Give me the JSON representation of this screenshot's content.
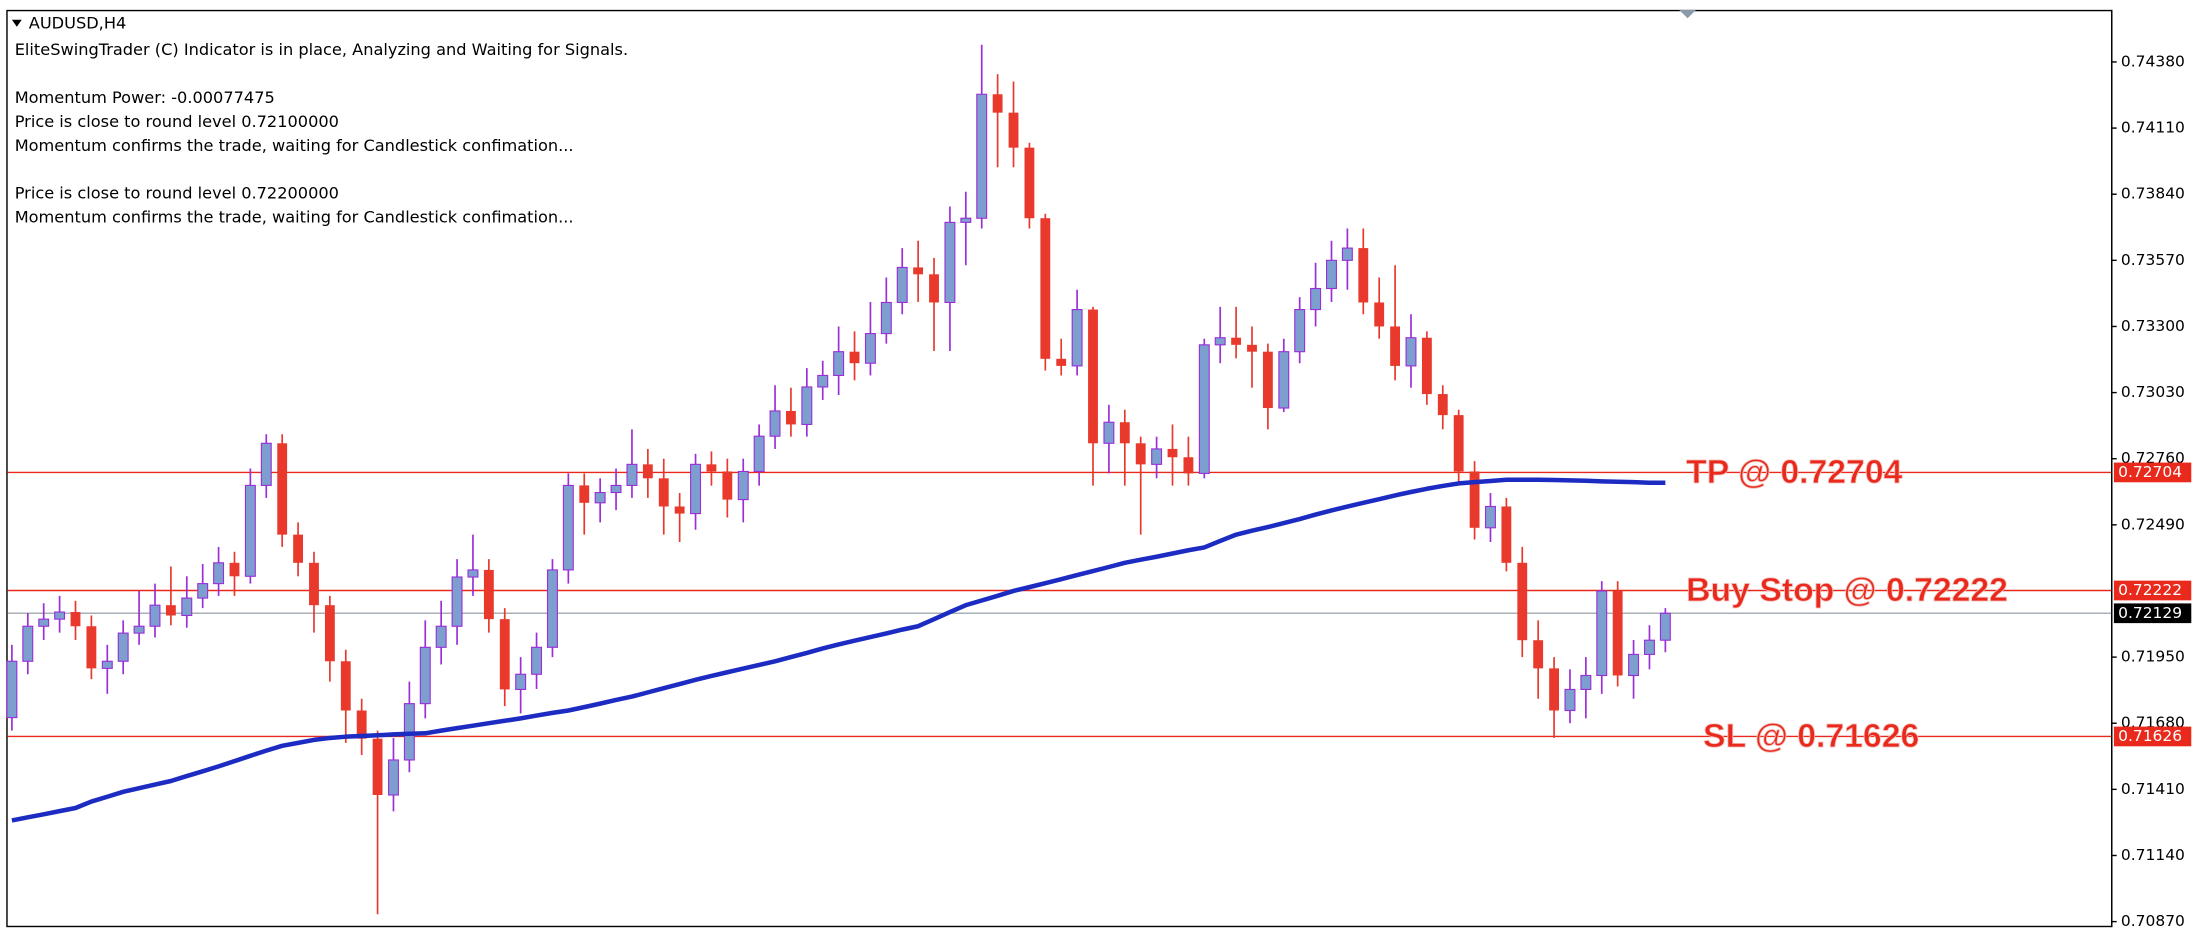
{
  "chart_data": {
    "type": "candlestick",
    "symbol": "AUDUSD,H4",
    "notes": [
      "EliteSwingTrader (C) Indicator is in place, Analyzing and Waiting for Signals.",
      "Momentum Power: -0.00077475",
      "Price is close to round level 0.72100000",
      "Momentum confirms the trade, waiting for Candlestick confimation...",
      "Price is close to round level 0.72200000",
      "Momentum confirms the trade, waiting for Candlestick confimation..."
    ],
    "up_color": "#7d9fcf",
    "up_wick_color": "#9a2fd8",
    "down_color": "#e8392c",
    "open": [
      0.71703,
      0.71933,
      0.72076,
      0.72105,
      0.72134,
      0.72076,
      0.71904,
      0.71933,
      0.72048,
      0.72076,
      0.72162,
      0.7212,
      0.72191,
      0.7225,
      0.72335,
      0.7228,
      0.72651,
      0.72823,
      0.7245,
      0.72335,
      0.72162,
      0.71933,
      0.71732,
      0.71617,
      0.71387,
      0.7153,
      0.7176,
      0.7199,
      0.72076,
      0.72277,
      0.72306,
      0.72105,
      0.71818,
      0.7188,
      0.7199,
      0.72306,
      0.72651,
      0.7258,
      0.72622,
      0.72651,
      0.72737,
      0.7268,
      0.72565,
      0.72536,
      0.72737,
      0.72708,
      0.72593,
      0.72708,
      0.72852,
      0.72955,
      0.729,
      0.73053,
      0.731,
      0.73197,
      0.7315,
      0.73271,
      0.73398,
      0.73541,
      0.73513,
      0.73398,
      0.73725,
      0.73742,
      0.74248,
      0.74173,
      0.7403,
      0.73742,
      0.73168,
      0.73139,
      0.73369,
      0.72823,
      0.72909,
      0.72823,
      0.72737,
      0.728,
      0.72766,
      0.727,
      0.73225,
      0.73254,
      0.73225,
      0.73197,
      0.72967,
      0.73197,
      0.73369,
      0.73455,
      0.7357,
      0.7362,
      0.73398,
      0.733,
      0.73139,
      0.73254,
      0.73024,
      0.72938,
      0.72708,
      0.72478,
      0.72565,
      0.72335,
      0.72019,
      0.71904,
      0.71732,
      0.71818,
      0.71875,
      0.7222,
      0.71875,
      0.71961,
      0.72019
    ],
    "high": [
      0.72,
      0.7213,
      0.7217,
      0.722,
      0.7218,
      0.7212,
      0.72,
      0.721,
      0.7222,
      0.7225,
      0.7232,
      0.7228,
      0.7233,
      0.724,
      0.7238,
      0.7272,
      0.7286,
      0.7286,
      0.725,
      0.7238,
      0.722,
      0.7198,
      0.7178,
      0.7165,
      0.7162,
      0.7185,
      0.721,
      0.7218,
      0.7235,
      0.7245,
      0.7235,
      0.7215,
      0.7195,
      0.7205,
      0.7235,
      0.727,
      0.727,
      0.7268,
      0.7272,
      0.7288,
      0.728,
      0.7276,
      0.7262,
      0.7278,
      0.7279,
      0.7276,
      0.7276,
      0.729,
      0.7306,
      0.7305,
      0.7313,
      0.7316,
      0.733,
      0.7328,
      0.734,
      0.735,
      0.7362,
      0.7365,
      0.7358,
      0.7379,
      0.7385,
      0.7445,
      0.7433,
      0.743,
      0.7405,
      0.7376,
      0.7325,
      0.7345,
      0.7338,
      0.7298,
      0.7296,
      0.7285,
      0.7285,
      0.729,
      0.7285,
      0.7325,
      0.7338,
      0.7338,
      0.733,
      0.7323,
      0.7325,
      0.7342,
      0.7356,
      0.7365,
      0.737,
      0.737,
      0.735,
      0.7355,
      0.7335,
      0.7328,
      0.7306,
      0.7296,
      0.7275,
      0.7262,
      0.726,
      0.724,
      0.721,
      0.7195,
      0.719,
      0.7195,
      0.7226,
      0.7226,
      0.7202,
      0.7208,
      0.7215
    ],
    "low": [
      0.7165,
      0.7188,
      0.7202,
      0.7205,
      0.7202,
      0.7186,
      0.718,
      0.7188,
      0.72,
      0.7203,
      0.7208,
      0.7207,
      0.7215,
      0.722,
      0.722,
      0.7225,
      0.726,
      0.724,
      0.7228,
      0.7205,
      0.7185,
      0.716,
      0.7155,
      0.709,
      0.7132,
      0.7148,
      0.717,
      0.7192,
      0.72,
      0.722,
      0.7205,
      0.7175,
      0.7172,
      0.7182,
      0.7195,
      0.7225,
      0.7245,
      0.725,
      0.7255,
      0.726,
      0.726,
      0.7245,
      0.7242,
      0.7247,
      0.7265,
      0.7252,
      0.725,
      0.7265,
      0.728,
      0.7285,
      0.7285,
      0.73,
      0.7302,
      0.7308,
      0.731,
      0.7323,
      0.7335,
      0.734,
      0.732,
      0.732,
      0.7355,
      0.737,
      0.7395,
      0.7395,
      0.737,
      0.7312,
      0.731,
      0.731,
      0.7265,
      0.727,
      0.7265,
      0.7245,
      0.7268,
      0.7265,
      0.7265,
      0.7268,
      0.7315,
      0.7317,
      0.7305,
      0.7288,
      0.7295,
      0.7315,
      0.733,
      0.734,
      0.7345,
      0.7335,
      0.7325,
      0.7308,
      0.7305,
      0.7298,
      0.7288,
      0.7265,
      0.7243,
      0.7242,
      0.723,
      0.7195,
      0.7178,
      0.7162,
      0.7168,
      0.717,
      0.718,
      0.7183,
      0.7178,
      0.719,
      0.7197
    ],
    "close": [
      0.71933,
      0.72076,
      0.72105,
      0.72134,
      0.72076,
      0.71904,
      0.71933,
      0.72048,
      0.72076,
      0.72162,
      0.7212,
      0.72191,
      0.7225,
      0.72335,
      0.7228,
      0.72651,
      0.72823,
      0.7245,
      0.72335,
      0.72162,
      0.71933,
      0.71732,
      0.71617,
      0.71387,
      0.7153,
      0.7176,
      0.7199,
      0.72076,
      0.72277,
      0.72306,
      0.72105,
      0.71818,
      0.7188,
      0.7199,
      0.72306,
      0.72651,
      0.7258,
      0.72622,
      0.72651,
      0.72737,
      0.7268,
      0.72565,
      0.72536,
      0.72737,
      0.72708,
      0.72593,
      0.72708,
      0.72852,
      0.72955,
      0.729,
      0.73053,
      0.731,
      0.73197,
      0.7315,
      0.73271,
      0.73398,
      0.73541,
      0.73513,
      0.73398,
      0.73725,
      0.73742,
      0.74248,
      0.74173,
      0.7403,
      0.73742,
      0.73168,
      0.73139,
      0.73369,
      0.72823,
      0.72909,
      0.72823,
      0.72737,
      0.728,
      0.72766,
      0.727,
      0.73225,
      0.73254,
      0.73225,
      0.73197,
      0.72967,
      0.73197,
      0.73369,
      0.73455,
      0.7357,
      0.7362,
      0.73398,
      0.733,
      0.73139,
      0.73254,
      0.73024,
      0.72938,
      0.72708,
      0.72478,
      0.72565,
      0.72335,
      0.72019,
      0.71904,
      0.71732,
      0.71818,
      0.71875,
      0.7222,
      0.71875,
      0.71961,
      0.72019,
      0.72129
    ],
    "moving_average": {
      "color": "#1c2bc2",
      "values": [
        0.71283,
        0.71296,
        0.71308,
        0.71321,
        0.71334,
        0.7136,
        0.7138,
        0.714,
        0.71415,
        0.7143,
        0.71444,
        0.71464,
        0.71484,
        0.71504,
        0.71525,
        0.71547,
        0.71568,
        0.71588,
        0.716,
        0.71612,
        0.7162,
        0.71625,
        0.71628,
        0.71631,
        0.71634,
        0.71637,
        0.71639,
        0.7165,
        0.7166,
        0.7167,
        0.7168,
        0.7169,
        0.717,
        0.71711,
        0.71722,
        0.71732,
        0.71746,
        0.7176,
        0.71775,
        0.71789,
        0.71806,
        0.71823,
        0.7184,
        0.71857,
        0.71873,
        0.71888,
        0.71903,
        0.71918,
        0.71933,
        0.7195,
        0.71967,
        0.71985,
        0.72002,
        0.72017,
        0.72032,
        0.72047,
        0.72062,
        0.72076,
        0.72105,
        0.72134,
        0.72162,
        0.72181,
        0.722,
        0.7222,
        0.72236,
        0.72252,
        0.72268,
        0.72285,
        0.72301,
        0.72318,
        0.72335,
        0.72348,
        0.7236,
        0.72373,
        0.72386,
        0.72398,
        0.72424,
        0.7245,
        0.72466,
        0.72481,
        0.72497,
        0.72514,
        0.72532,
        0.72549,
        0.72565,
        0.7258,
        0.72595,
        0.7261,
        0.72624,
        0.72637,
        0.72649,
        0.72659,
        0.72664,
        0.72669,
        0.72674,
        0.72674,
        0.72674,
        0.72673,
        0.72672,
        0.7267,
        0.72668,
        0.72666,
        0.72664,
        0.72662,
        0.72662
      ]
    },
    "levels": [
      {
        "value": 0.72704,
        "label": "TP @ 0.72704",
        "color": "#e8291c"
      },
      {
        "value": 0.72222,
        "label": "Buy Stop @ 0.72222",
        "color": "#e8291c"
      },
      {
        "value": 0.71626,
        "label": "SL @ 0.71626",
        "color": "#e8291c"
      }
    ],
    "current_price_color": "#a8b0b8",
    "ylim": [
      0.70853,
      0.74587
    ],
    "yticks": [
      {
        "value": 0.7438,
        "label": "0.74380"
      },
      {
        "value": 0.7411,
        "label": "0.74110"
      },
      {
        "value": 0.7384,
        "label": "0.73840"
      },
      {
        "value": 0.7357,
        "label": "0.73570"
      },
      {
        "value": 0.733,
        "label": "0.73300"
      },
      {
        "value": 0.7303,
        "label": "0.73030"
      },
      {
        "value": 0.7276,
        "label": "0.72760"
      },
      {
        "value": 0.7249,
        "label": "0.72490"
      },
      {
        "value": 0.7195,
        "label": "0.71950"
      },
      {
        "value": 0.7168,
        "label": "0.71680"
      },
      {
        "value": 0.7141,
        "label": "0.71410"
      },
      {
        "value": 0.7114,
        "label": "0.71140"
      },
      {
        "value": 0.7087,
        "label": "0.70870"
      }
    ]
  }
}
